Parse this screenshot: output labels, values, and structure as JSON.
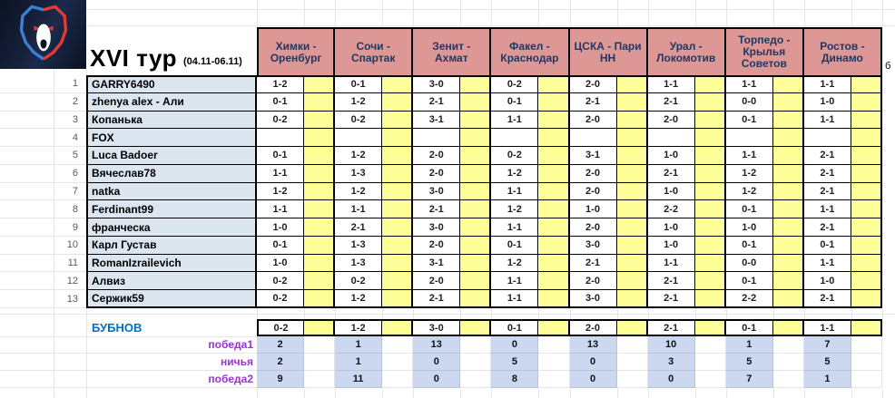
{
  "header": {
    "title": "XVI тур",
    "dates": "(04.11-06.11)",
    "clipped_text": "б"
  },
  "matches": [
    "Химки - Оренбург",
    "Сочи - Спартак",
    "Зенит - Ахмат",
    "Факел - Краснодар",
    "ЦСКА - Пари НН",
    "Урал - Локомотив",
    "Торпедо - Крылья Советов",
    "Ростов - Динамо"
  ],
  "players": [
    {
      "num": "1",
      "name": "GARRY6490",
      "preds": [
        "1-2",
        "0-1",
        "3-0",
        "0-2",
        "2-0",
        "1-1",
        "1-1",
        "1-1"
      ]
    },
    {
      "num": "2",
      "name": "zhenya alex - Али",
      "preds": [
        "0-1",
        "1-2",
        "2-1",
        "0-1",
        "2-1",
        "2-1",
        "0-0",
        "1-0"
      ]
    },
    {
      "num": "3",
      "name": "Копанька",
      "preds": [
        "0-2",
        "0-2",
        "3-1",
        "1-1",
        "2-0",
        "2-0",
        "0-1",
        "1-1"
      ]
    },
    {
      "num": "4",
      "name": "FOX",
      "preds": [
        "",
        "",
        "",
        "",
        "",
        "",
        "",
        ""
      ]
    },
    {
      "num": "5",
      "name": "Luca Badoer",
      "preds": [
        "0-1",
        "1-2",
        "2-0",
        "0-2",
        "3-1",
        "1-0",
        "1-1",
        "2-1"
      ]
    },
    {
      "num": "6",
      "name": "Вячеслав78",
      "preds": [
        "1-1",
        "1-3",
        "2-0",
        "1-2",
        "2-0",
        "2-1",
        "1-2",
        "2-1"
      ]
    },
    {
      "num": "7",
      "name": "natka",
      "preds": [
        "1-2",
        "1-2",
        "3-0",
        "1-1",
        "2-0",
        "1-0",
        "1-2",
        "2-1"
      ]
    },
    {
      "num": "8",
      "name": "Ferdinant99",
      "preds": [
        "1-1",
        "1-1",
        "2-1",
        "1-2",
        "1-0",
        "2-2",
        "0-1",
        "1-1"
      ]
    },
    {
      "num": "9",
      "name": "франческа",
      "preds": [
        "1-0",
        "2-1",
        "3-0",
        "1-1",
        "2-0",
        "1-0",
        "1-0",
        "2-1"
      ]
    },
    {
      "num": "10",
      "name": "Карл Густав",
      "preds": [
        "0-1",
        "1-3",
        "2-0",
        "0-1",
        "3-0",
        "1-0",
        "0-1",
        "0-1"
      ]
    },
    {
      "num": "11",
      "name": "RomanIzrailevich",
      "preds": [
        "1-0",
        "1-3",
        "3-1",
        "1-2",
        "2-1",
        "1-1",
        "0-0",
        "1-1"
      ]
    },
    {
      "num": "12",
      "name": "Алвиз",
      "preds": [
        "0-2",
        "0-2",
        "2-0",
        "1-1",
        "2-0",
        "2-1",
        "0-1",
        "1-0"
      ]
    },
    {
      "num": "13",
      "name": "Сержик59",
      "preds": [
        "0-2",
        "1-2",
        "2-1",
        "1-1",
        "3-0",
        "2-1",
        "2-2",
        "2-1"
      ]
    }
  ],
  "bubnov": {
    "label": "БУБНОВ",
    "preds": [
      "0-2",
      "1-2",
      "3-0",
      "0-1",
      "2-0",
      "2-1",
      "0-1",
      "1-1"
    ]
  },
  "stats": [
    {
      "label": "победа1",
      "values": [
        "2",
        "1",
        "13",
        "0",
        "13",
        "10",
        "1",
        "7"
      ]
    },
    {
      "label": "ничья",
      "values": [
        "2",
        "1",
        "0",
        "5",
        "0",
        "3",
        "5",
        "5"
      ]
    },
    {
      "label": "победа2",
      "values": [
        "9",
        "11",
        "0",
        "8",
        "0",
        "0",
        "7",
        "1"
      ]
    }
  ],
  "colors": {
    "header_bg": "#DD9795",
    "header_text": "#1F3864",
    "points_bg": "#FFFF99",
    "name_bg": "#DCE6F1",
    "stat_bg": "#CBD8F0",
    "bubnov_text": "#0070C0",
    "stat_label": "#9933CC",
    "gridline": "#E2E5EA"
  }
}
